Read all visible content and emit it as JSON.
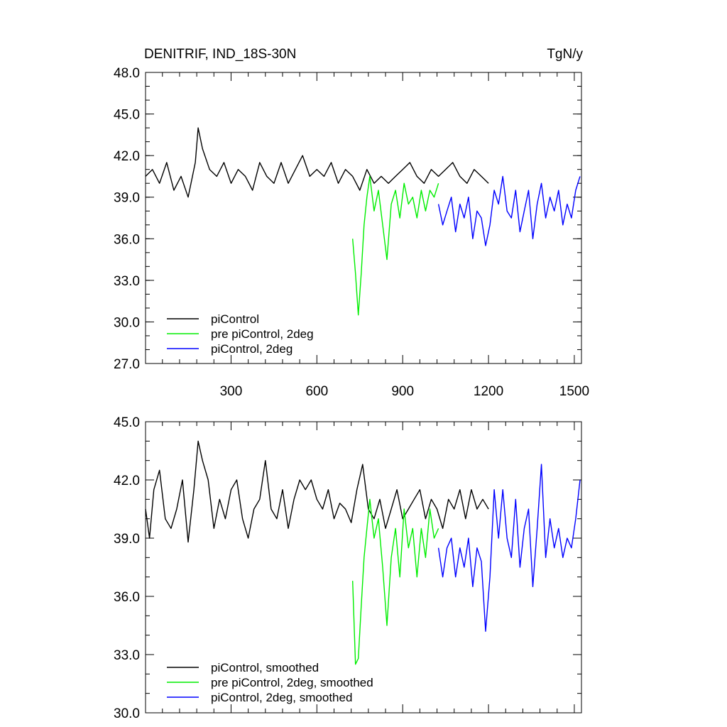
{
  "chart_data": [
    {
      "type": "line",
      "title": "DENITRIF, IND_18S-30N",
      "units": "TgN/y",
      "xlim": [
        1,
        1525
      ],
      "ylim": [
        27.0,
        48.0
      ],
      "x_ticks": [
        300,
        600,
        900,
        1200,
        1500
      ],
      "x_tick_labels": [
        "300",
        "600",
        "900",
        "1200",
        "1500"
      ],
      "y_ticks": [
        27.0,
        30.0,
        33.0,
        36.0,
        39.0,
        42.0,
        45.0,
        48.0
      ],
      "y_tick_labels": [
        "27.0",
        "30.0",
        "33.0",
        "36.0",
        "39.0",
        "42.0",
        "45.0",
        "48.0"
      ],
      "legend_position": "lower-left",
      "series": [
        {
          "name": "piControl",
          "color": "#000000",
          "x": [
            1,
            25,
            50,
            75,
            100,
            125,
            150,
            175,
            185,
            200,
            225,
            250,
            275,
            300,
            325,
            350,
            375,
            400,
            425,
            450,
            475,
            500,
            525,
            550,
            575,
            600,
            625,
            650,
            675,
            700,
            725,
            750,
            775,
            800,
            825,
            850,
            875,
            900,
            925,
            950,
            975,
            1000,
            1025,
            1050,
            1075,
            1100,
            1125,
            1150,
            1175,
            1200
          ],
          "values": [
            40.5,
            41.0,
            40.0,
            41.5,
            39.5,
            40.5,
            39.0,
            41.5,
            44.0,
            42.5,
            41.0,
            40.5,
            41.5,
            40.0,
            41.0,
            40.5,
            39.5,
            41.5,
            40.5,
            40.0,
            41.5,
            40.0,
            41.0,
            42.0,
            40.5,
            41.0,
            40.5,
            41.5,
            40.0,
            41.0,
            40.5,
            39.5,
            41.0,
            40.0,
            40.5,
            40.0,
            40.5,
            41.0,
            41.5,
            40.5,
            40.0,
            41.0,
            40.5,
            41.0,
            41.5,
            40.5,
            40.0,
            41.0,
            40.5,
            40.0
          ]
        },
        {
          "name": "pre piControl, 2deg",
          "color": "#00ee00",
          "x": [
            725,
            735,
            745,
            755,
            765,
            775,
            785,
            800,
            815,
            830,
            845,
            860,
            875,
            890,
            905,
            920,
            935,
            950,
            965,
            980,
            995,
            1010,
            1025
          ],
          "values": [
            36.0,
            33.5,
            30.5,
            33.5,
            37.0,
            39.0,
            40.5,
            38.0,
            39.5,
            37.0,
            34.5,
            38.5,
            39.5,
            37.5,
            40.0,
            38.5,
            39.0,
            37.5,
            39.5,
            38.0,
            39.5,
            39.0,
            40.0
          ]
        },
        {
          "name": "piControl, 2deg",
          "color": "#0000ff",
          "x": [
            1025,
            1040,
            1055,
            1070,
            1085,
            1100,
            1115,
            1130,
            1145,
            1160,
            1175,
            1190,
            1205,
            1220,
            1235,
            1250,
            1265,
            1280,
            1295,
            1310,
            1325,
            1340,
            1355,
            1370,
            1385,
            1400,
            1415,
            1430,
            1445,
            1460,
            1475,
            1490,
            1505,
            1520
          ],
          "values": [
            38.5,
            37.0,
            38.0,
            39.0,
            36.5,
            38.5,
            37.5,
            39.0,
            36.0,
            38.0,
            37.5,
            35.5,
            37.0,
            39.5,
            38.5,
            40.5,
            38.0,
            37.5,
            39.5,
            36.5,
            38.0,
            39.5,
            36.0,
            38.5,
            40.0,
            37.5,
            39.0,
            38.0,
            39.5,
            37.0,
            38.5,
            37.5,
            39.5,
            40.5
          ]
        }
      ]
    },
    {
      "type": "line",
      "xlim": [
        1,
        1525
      ],
      "ylim": [
        30.0,
        45.0
      ],
      "x_ticks": [
        300,
        600,
        900,
        1200,
        1500
      ],
      "y_ticks": [
        30.0,
        33.0,
        36.0,
        39.0,
        42.0,
        45.0
      ],
      "y_tick_labels": [
        "30.0",
        "33.0",
        "36.0",
        "39.0",
        "42.0",
        "45.0"
      ],
      "legend_position": "lower-left",
      "series": [
        {
          "name": "piControl, smoothed",
          "color": "#000000",
          "x": [
            1,
            15,
            30,
            50,
            70,
            90,
            110,
            130,
            150,
            170,
            185,
            200,
            220,
            240,
            260,
            280,
            300,
            320,
            340,
            360,
            380,
            400,
            420,
            440,
            460,
            480,
            500,
            520,
            540,
            560,
            580,
            600,
            620,
            640,
            660,
            680,
            700,
            720,
            740,
            760,
            780,
            800,
            820,
            840,
            860,
            880,
            900,
            920,
            940,
            960,
            980,
            1000,
            1020,
            1040,
            1060,
            1080,
            1100,
            1120,
            1140,
            1160,
            1180,
            1200
          ],
          "values": [
            40.5,
            39.0,
            41.5,
            42.5,
            40.0,
            39.5,
            40.5,
            42.0,
            38.8,
            41.5,
            44.0,
            43.0,
            42.0,
            39.5,
            41.0,
            40.0,
            41.5,
            42.0,
            40.0,
            39.0,
            40.5,
            41.0,
            43.0,
            40.5,
            40.0,
            41.5,
            39.5,
            41.0,
            42.0,
            41.5,
            42.0,
            41.0,
            40.5,
            41.5,
            40.0,
            40.8,
            40.5,
            39.8,
            41.5,
            42.8,
            40.5,
            40.0,
            41.0,
            39.5,
            40.5,
            41.5,
            40.0,
            40.5,
            41.0,
            41.5,
            40.0,
            41.0,
            40.5,
            39.5,
            41.0,
            40.5,
            41.5,
            40.0,
            41.5,
            40.5,
            41.0,
            40.5
          ]
        },
        {
          "name": "pre piControl, 2deg, smoothed",
          "color": "#00ee00",
          "x": [
            725,
            735,
            745,
            755,
            765,
            775,
            785,
            800,
            815,
            830,
            845,
            860,
            875,
            890,
            905,
            920,
            935,
            950,
            965,
            980,
            995,
            1010,
            1025
          ],
          "values": [
            36.8,
            32.5,
            32.8,
            35.5,
            38.0,
            39.5,
            41.0,
            39.0,
            40.0,
            37.5,
            34.5,
            38.0,
            39.5,
            37.0,
            40.5,
            38.5,
            39.5,
            37.0,
            39.5,
            38.0,
            40.5,
            39.0,
            39.5
          ]
        },
        {
          "name": "piControl, 2deg, smoothed",
          "color": "#0000ff",
          "x": [
            1025,
            1040,
            1055,
            1070,
            1085,
            1100,
            1115,
            1130,
            1145,
            1160,
            1175,
            1190,
            1205,
            1220,
            1235,
            1250,
            1265,
            1280,
            1295,
            1310,
            1325,
            1340,
            1355,
            1370,
            1385,
            1400,
            1415,
            1430,
            1445,
            1460,
            1475,
            1490,
            1505,
            1520
          ],
          "values": [
            38.5,
            37.0,
            38.5,
            39.0,
            37.0,
            38.5,
            37.5,
            39.0,
            36.5,
            38.5,
            37.8,
            34.2,
            37.0,
            41.5,
            39.0,
            41.5,
            39.0,
            38.0,
            41.0,
            37.5,
            39.5,
            40.5,
            36.5,
            39.5,
            42.8,
            38.0,
            40.0,
            38.5,
            39.5,
            38.0,
            39.0,
            38.5,
            40.0,
            42.0
          ]
        }
      ]
    }
  ]
}
